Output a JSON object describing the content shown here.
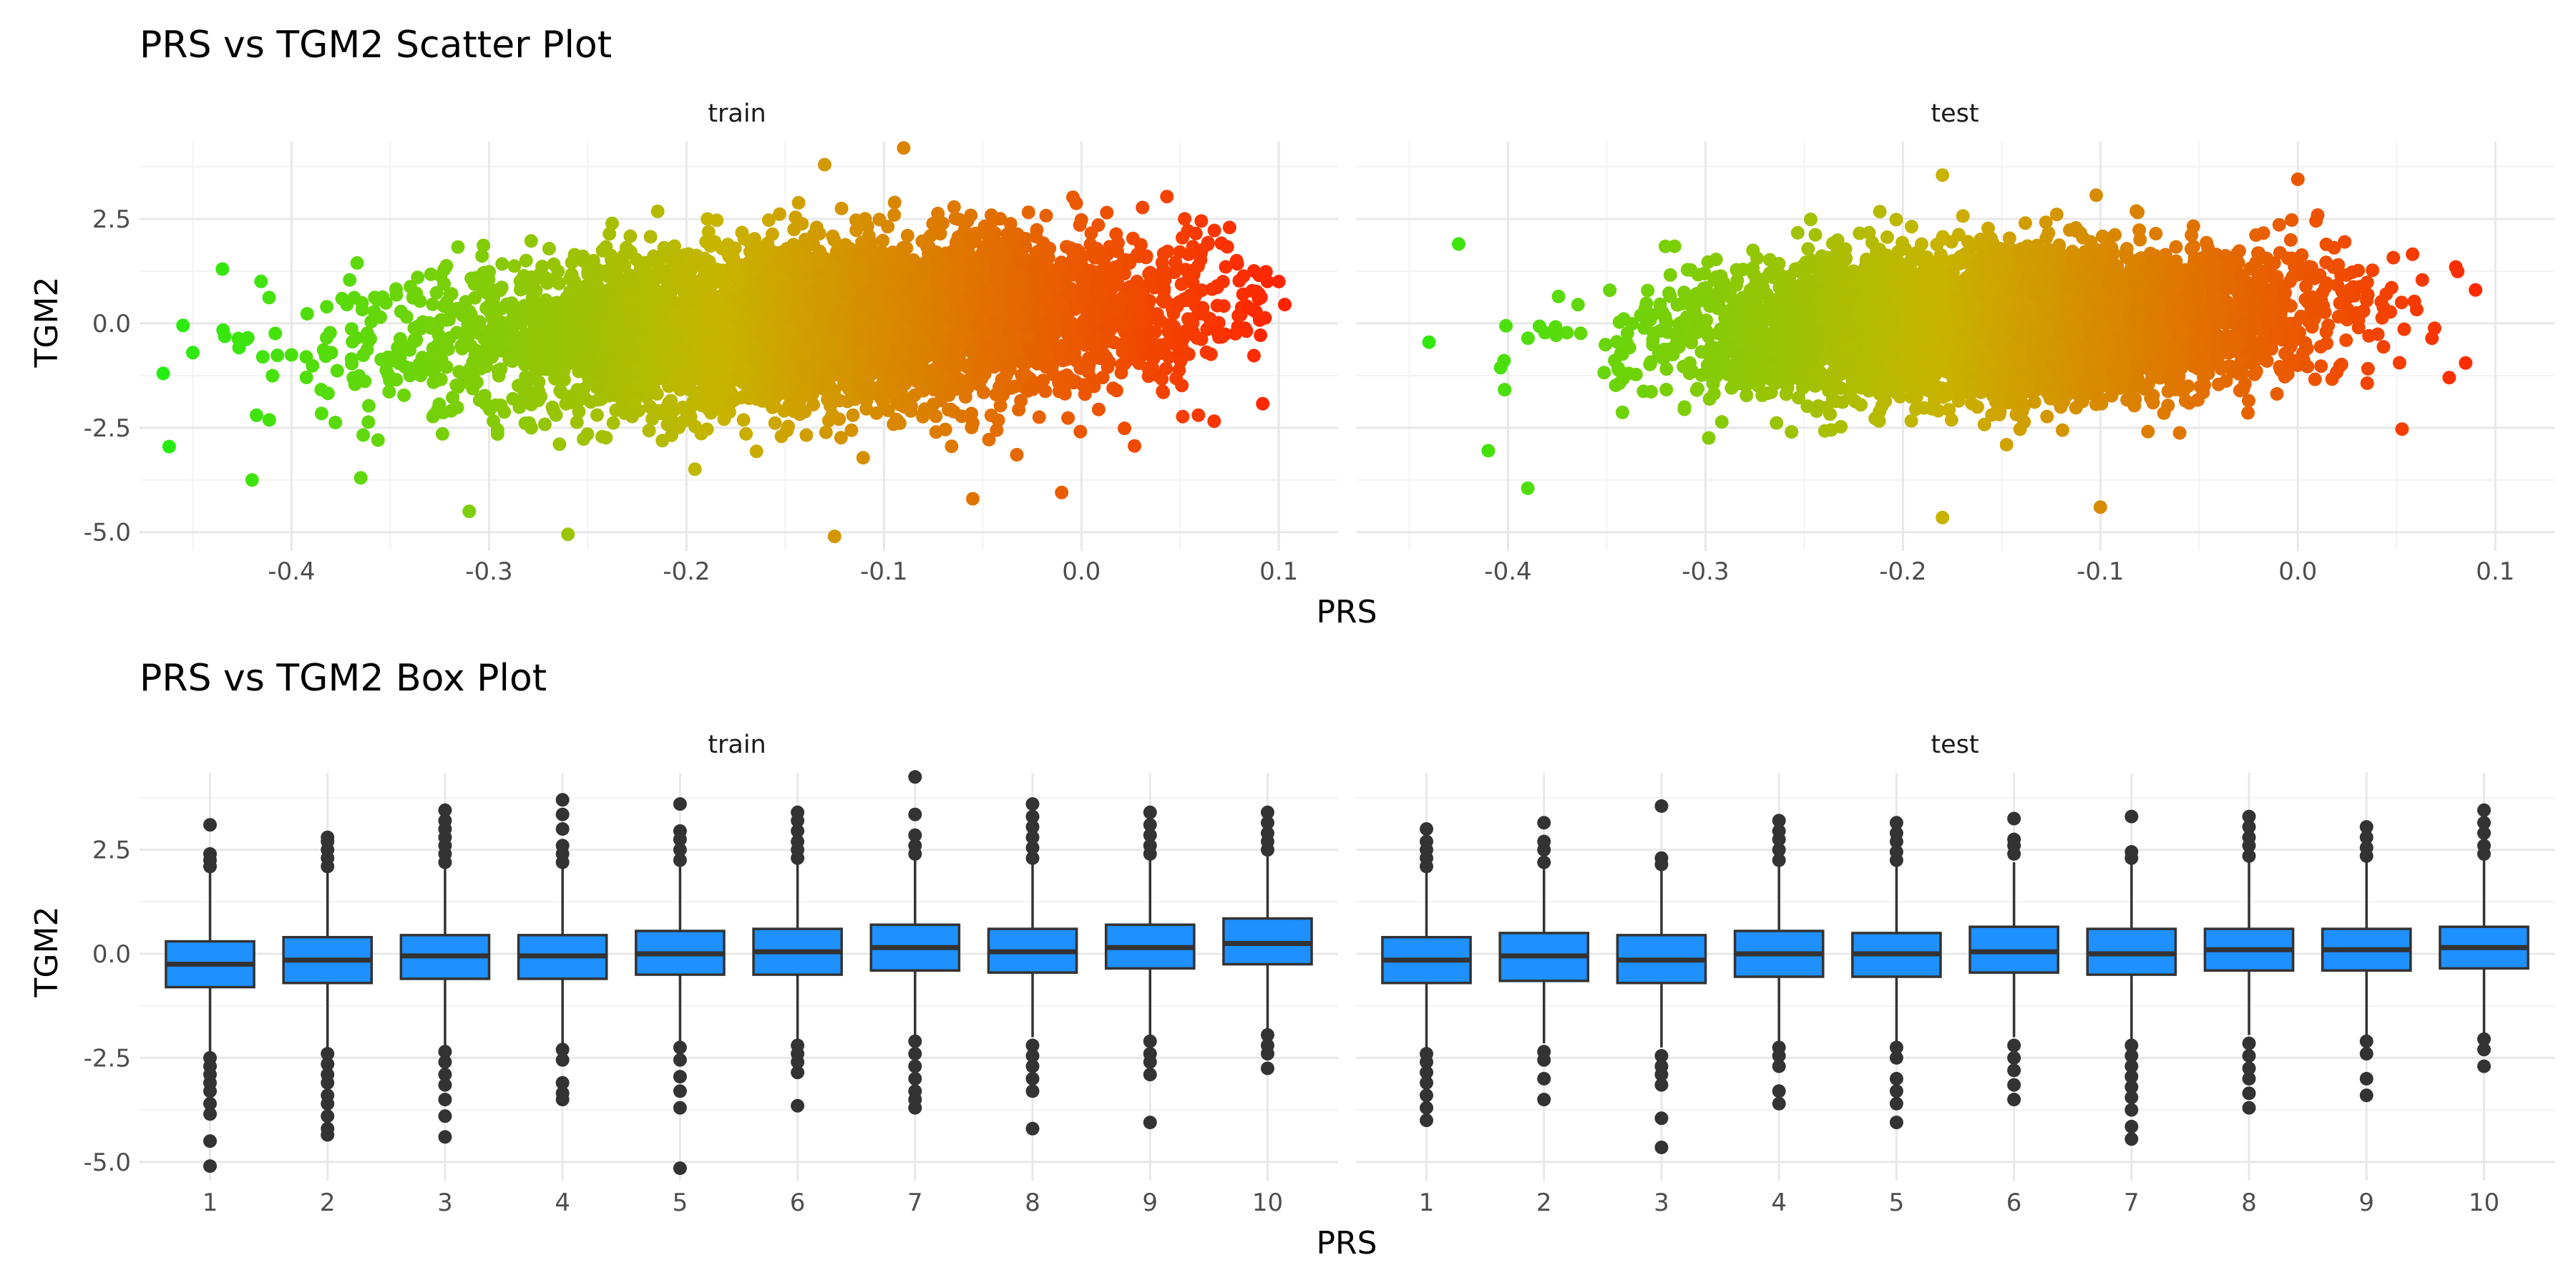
{
  "sections": {
    "scatter": {
      "title": "PRS vs TGM2 Scatter Plot",
      "xlabel": "PRS",
      "ylabel": "TGM2"
    },
    "box": {
      "title": "PRS vs TGM2 Box Plot",
      "xlabel": "PRS",
      "ylabel": "TGM2"
    }
  },
  "chart_data": [
    {
      "type": "scatter",
      "title": "PRS vs TGM2 Scatter Plot",
      "xlabel": "PRS",
      "ylabel": "TGM2",
      "facets": [
        "train",
        "test"
      ],
      "x_ticks": [
        "-0.4",
        "-0.3",
        "-0.2",
        "-0.1",
        "0.0",
        "0.1"
      ],
      "x_tick_values": [
        -0.4,
        -0.3,
        -0.2,
        -0.1,
        0.0,
        0.1
      ],
      "y_ticks": [
        "-5.0",
        "-2.5",
        "0.0",
        "2.5"
      ],
      "y_tick_values": [
        -5.0,
        -2.5,
        0.0,
        2.5
      ],
      "xlim": [
        -0.477,
        0.13
      ],
      "ylim": [
        -5.45,
        4.35
      ],
      "color_gradient": {
        "low": "#22ee11",
        "mid": "#c8b400",
        "high": "#ff2200"
      },
      "grid": true,
      "legend": "none",
      "series": [
        {
          "facet": "train",
          "x_range": [
            -0.465,
            0.105
          ],
          "y_range": [
            -5.1,
            4.2
          ],
          "center": {
            "x": -0.13,
            "y": 0.0
          },
          "x_sd": 0.095,
          "y_sd": 0.95,
          "slope": 2.0,
          "outliers": [
            {
              "x": -0.465,
              "y": -1.2
            },
            {
              "x": -0.462,
              "y": -2.95
            },
            {
              "x": -0.455,
              "y": -0.05
            },
            {
              "x": -0.45,
              "y": -0.7
            },
            {
              "x": -0.435,
              "y": 1.3
            },
            {
              "x": -0.42,
              "y": -3.75
            },
            {
              "x": -0.365,
              "y": -3.7
            },
            {
              "x": -0.31,
              "y": -4.5
            },
            {
              "x": -0.26,
              "y": -5.05
            },
            {
              "x": -0.125,
              "y": -5.1
            },
            {
              "x": -0.09,
              "y": 4.2
            },
            {
              "x": -0.13,
              "y": 3.8
            },
            {
              "x": 0.1,
              "y": 1.0
            },
            {
              "x": 0.103,
              "y": 0.45
            },
            {
              "x": 0.09,
              "y": 0.7
            },
            {
              "x": -0.01,
              "y": -4.05
            },
            {
              "x": -0.055,
              "y": -4.2
            }
          ]
        },
        {
          "facet": "test",
          "x_range": [
            -0.44,
            0.1
          ],
          "y_range": [
            -4.65,
            3.55
          ],
          "center": {
            "x": -0.15,
            "y": 0.0
          },
          "x_sd": 0.075,
          "y_sd": 0.85,
          "slope": 1.5,
          "outliers": [
            {
              "x": -0.44,
              "y": -0.45
            },
            {
              "x": -0.425,
              "y": 1.9
            },
            {
              "x": -0.41,
              "y": -3.05
            },
            {
              "x": -0.39,
              "y": -3.95
            },
            {
              "x": -0.18,
              "y": -4.65
            },
            {
              "x": -0.18,
              "y": 3.55
            },
            {
              "x": -0.1,
              "y": -4.4
            },
            {
              "x": 0.09,
              "y": 0.8
            },
            {
              "x": 0.08,
              "y": 1.35
            },
            {
              "x": 0.085,
              "y": -0.95
            },
            {
              "x": 0.0,
              "y": 3.45
            }
          ]
        }
      ]
    },
    {
      "type": "box",
      "title": "PRS vs TGM2 Box Plot",
      "xlabel": "PRS",
      "ylabel": "TGM2",
      "facets": [
        "train",
        "test"
      ],
      "categories": [
        "1",
        "2",
        "3",
        "4",
        "5",
        "6",
        "7",
        "8",
        "9",
        "10"
      ],
      "y_ticks": [
        "-5.0",
        "-2.5",
        "0.0",
        "2.5"
      ],
      "y_tick_values": [
        -5.0,
        -2.5,
        0.0,
        2.5
      ],
      "ylim": [
        -5.45,
        4.35
      ],
      "box_color": "#1e90ff",
      "outline_color": "#333333",
      "grid": true,
      "legend": "none",
      "series": [
        {
          "facet": "train",
          "boxes": [
            {
              "q1": -0.8,
              "median": -0.25,
              "q3": 0.3,
              "whisker_low": -2.35,
              "whisker_high": 1.95,
              "outliers_high": [
                2.1,
                2.25,
                2.4,
                3.1
              ],
              "outliers_low": [
                -2.5,
                -2.7,
                -2.9,
                -3.1,
                -3.3,
                -3.6,
                -3.85,
                -4.5,
                -5.1
              ]
            },
            {
              "q1": -0.7,
              "median": -0.15,
              "q3": 0.4,
              "whisker_low": -2.25,
              "whisker_high": 2.0,
              "outliers_high": [
                2.1,
                2.3,
                2.5,
                2.7,
                2.8
              ],
              "outliers_low": [
                -2.4,
                -2.65,
                -2.9,
                -3.1,
                -3.4,
                -3.6,
                -3.9,
                -4.2,
                -4.35
              ]
            },
            {
              "q1": -0.6,
              "median": -0.05,
              "q3": 0.45,
              "whisker_low": -2.2,
              "whisker_high": 2.05,
              "outliers_high": [
                2.2,
                2.4,
                2.6,
                2.8,
                3.0,
                3.2,
                3.45
              ],
              "outliers_low": [
                -2.35,
                -2.6,
                -2.9,
                -3.15,
                -3.5,
                -3.9,
                -4.4
              ]
            },
            {
              "q1": -0.6,
              "median": -0.05,
              "q3": 0.45,
              "whisker_low": -2.15,
              "whisker_high": 2.05,
              "outliers_high": [
                2.2,
                2.4,
                2.6,
                3.0,
                3.35,
                3.7
              ],
              "outliers_low": [
                -2.3,
                -2.55,
                -3.1,
                -3.35,
                -3.5
              ]
            },
            {
              "q1": -0.5,
              "median": 0.0,
              "q3": 0.55,
              "whisker_low": -2.1,
              "whisker_high": 2.1,
              "outliers_high": [
                2.25,
                2.5,
                2.75,
                2.95,
                3.6
              ],
              "outliers_low": [
                -2.25,
                -2.55,
                -2.95,
                -3.3,
                -3.7,
                -5.15
              ]
            },
            {
              "q1": -0.5,
              "median": 0.05,
              "q3": 0.6,
              "whisker_low": -2.05,
              "whisker_high": 2.15,
              "outliers_high": [
                2.3,
                2.5,
                2.7,
                2.95,
                3.2,
                3.4
              ],
              "outliers_low": [
                -2.2,
                -2.4,
                -2.6,
                -2.85,
                -3.65
              ]
            },
            {
              "q1": -0.4,
              "median": 0.15,
              "q3": 0.7,
              "whisker_low": -1.95,
              "whisker_high": 2.25,
              "outliers_high": [
                2.4,
                2.6,
                2.85,
                3.35,
                4.25
              ],
              "outliers_low": [
                -2.1,
                -2.4,
                -2.7,
                -3.0,
                -3.3,
                -3.5,
                -3.7
              ]
            },
            {
              "q1": -0.45,
              "median": 0.05,
              "q3": 0.6,
              "whisker_low": -2.0,
              "whisker_high": 2.15,
              "outliers_high": [
                2.3,
                2.55,
                2.8,
                3.05,
                3.3,
                3.6
              ],
              "outliers_low": [
                -2.2,
                -2.45,
                -2.7,
                -3.0,
                -3.3,
                -4.2
              ]
            },
            {
              "q1": -0.35,
              "median": 0.15,
              "q3": 0.7,
              "whisker_low": -1.95,
              "whisker_high": 2.25,
              "outliers_high": [
                2.4,
                2.6,
                2.85,
                3.1,
                3.4
              ],
              "outliers_low": [
                -2.1,
                -2.4,
                -2.6,
                -2.9,
                -4.05
              ]
            },
            {
              "q1": -0.25,
              "median": 0.25,
              "q3": 0.85,
              "whisker_low": -1.8,
              "whisker_high": 2.4,
              "outliers_high": [
                2.5,
                2.7,
                2.9,
                3.15,
                3.4
              ],
              "outliers_low": [
                -1.95,
                -2.2,
                -2.4,
                -2.75
              ]
            }
          ]
        },
        {
          "facet": "test",
          "boxes": [
            {
              "q1": -0.7,
              "median": -0.15,
              "q3": 0.4,
              "whisker_low": -2.25,
              "whisker_high": 1.95,
              "outliers_high": [
                2.1,
                2.3,
                2.5,
                2.7,
                3.0
              ],
              "outliers_low": [
                -2.4,
                -2.6,
                -2.85,
                -3.1,
                -3.4,
                -3.7,
                -4.0
              ]
            },
            {
              "q1": -0.65,
              "median": -0.05,
              "q3": 0.5,
              "whisker_low": -2.15,
              "whisker_high": 2.05,
              "outliers_high": [
                2.2,
                2.5,
                2.7,
                3.15
              ],
              "outliers_low": [
                -2.35,
                -2.55,
                -3.0,
                -3.5
              ]
            },
            {
              "q1": -0.7,
              "median": -0.15,
              "q3": 0.45,
              "whisker_low": -2.25,
              "whisker_high": 2.0,
              "outliers_high": [
                2.15,
                2.3,
                3.55
              ],
              "outliers_low": [
                -2.45,
                -2.7,
                -2.9,
                -3.15,
                -3.95,
                -4.65
              ]
            },
            {
              "q1": -0.55,
              "median": 0.0,
              "q3": 0.55,
              "whisker_low": -2.1,
              "whisker_high": 2.1,
              "outliers_high": [
                2.25,
                2.5,
                2.75,
                2.95,
                3.2
              ],
              "outliers_low": [
                -2.25,
                -2.45,
                -2.7,
                -3.3,
                -3.6
              ]
            },
            {
              "q1": -0.55,
              "median": 0.0,
              "q3": 0.5,
              "whisker_low": -2.1,
              "whisker_high": 2.1,
              "outliers_high": [
                2.25,
                2.45,
                2.7,
                2.9,
                3.15
              ],
              "outliers_low": [
                -2.25,
                -2.5,
                -3.0,
                -3.3,
                -3.6,
                -4.05
              ]
            },
            {
              "q1": -0.45,
              "median": 0.05,
              "q3": 0.65,
              "whisker_low": -2.0,
              "whisker_high": 2.2,
              "outliers_high": [
                2.4,
                2.6,
                2.75,
                3.25
              ],
              "outliers_low": [
                -2.2,
                -2.5,
                -2.8,
                -3.15,
                -3.5
              ]
            },
            {
              "q1": -0.5,
              "median": 0.0,
              "q3": 0.6,
              "whisker_low": -2.05,
              "whisker_high": 2.15,
              "outliers_high": [
                2.3,
                2.45,
                3.3
              ],
              "outliers_low": [
                -2.2,
                -2.45,
                -2.7,
                -2.95,
                -3.2,
                -3.45,
                -3.75,
                -4.15,
                -4.45
              ]
            },
            {
              "q1": -0.4,
              "median": 0.1,
              "q3": 0.6,
              "whisker_low": -1.95,
              "whisker_high": 2.2,
              "outliers_high": [
                2.35,
                2.6,
                2.8,
                3.05,
                3.3
              ],
              "outliers_low": [
                -2.15,
                -2.45,
                -2.75,
                -3.0,
                -3.35,
                -3.7
              ]
            },
            {
              "q1": -0.4,
              "median": 0.1,
              "q3": 0.6,
              "whisker_low": -1.95,
              "whisker_high": 2.2,
              "outliers_high": [
                2.35,
                2.55,
                2.8,
                3.05
              ],
              "outliers_low": [
                -2.1,
                -2.4,
                -3.0,
                -3.4
              ]
            },
            {
              "q1": -0.35,
              "median": 0.15,
              "q3": 0.65,
              "whisker_low": -1.9,
              "whisker_high": 2.25,
              "outliers_high": [
                2.4,
                2.6,
                2.9,
                3.15,
                3.45
              ],
              "outliers_low": [
                -2.05,
                -2.3,
                -2.7
              ]
            }
          ]
        }
      ]
    }
  ]
}
